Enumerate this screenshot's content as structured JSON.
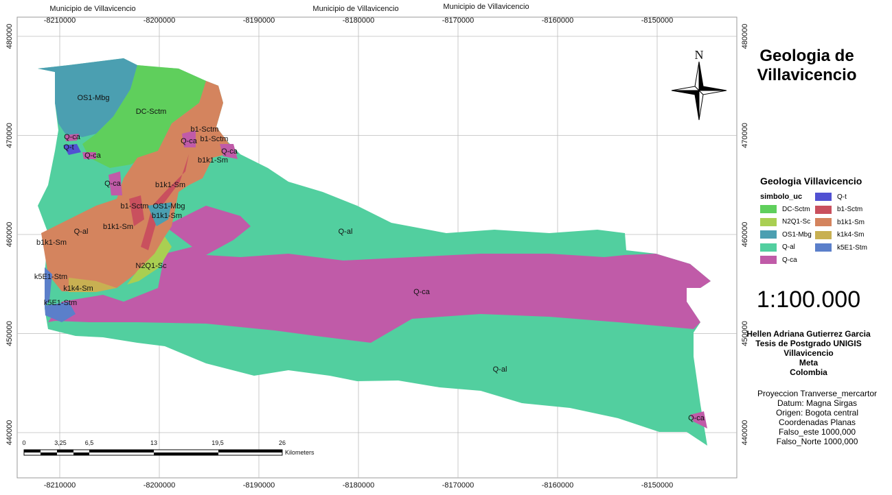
{
  "map": {
    "municipality_labels": [
      "Municipio de Villavicencio",
      "Municipio de Villavicencio",
      "Municipio de Villavicencio"
    ],
    "x_ticks": [
      -8210000,
      -8200000,
      -8190000,
      -8180000,
      -8170000,
      -8160000,
      -8150000
    ],
    "y_ticks": [
      480000,
      470000,
      460000,
      450000,
      440000
    ],
    "unit_labels": [
      "OS1-Mbg",
      "DC-Sctm",
      "Q-ca",
      "Q-t",
      "Q-ca",
      "b1-Sctm",
      "Q-ca",
      "b1-Sctm",
      "Q-ca",
      "b1k1-Sm",
      "Q-ca",
      "b1k1-Sm",
      "b1-Sctm",
      "OS1-Mbg",
      "b1k1-Sm",
      "b1k1-Sm",
      "Q-al",
      "Q-al",
      "b1k1-Sm",
      "N2Q1-Sc",
      "k5E1-Stm",
      "k1k4-Sm",
      "k5E1-Stm",
      "Q-ca",
      "Q-al",
      "Q-ca"
    ],
    "scalebar": {
      "ticks": [
        "0",
        "3,25",
        "6,5",
        "13",
        "19,5",
        "26"
      ],
      "unit": "Kilometers"
    }
  },
  "north": "N",
  "title": "Geologia de Villavicencio",
  "legend": {
    "title": "Geologia Villavicencio",
    "field": "simbolo_uc",
    "items": [
      {
        "label": "DC-Sctm",
        "color": "#5fcf5c"
      },
      {
        "label": "N2Q1-Sc",
        "color": "#a9cf52"
      },
      {
        "label": "OS1-Mbg",
        "color": "#4b9fb1"
      },
      {
        "label": "Q-al",
        "color": "#52cf9f"
      },
      {
        "label": "Q-ca",
        "color": "#c05ba8"
      },
      {
        "label": "Q-t",
        "color": "#5151d2"
      },
      {
        "label": "b1-Sctm",
        "color": "#c9505e"
      },
      {
        "label": "b1k1-Sm",
        "color": "#d4845e"
      },
      {
        "label": "k1k4-Sm",
        "color": "#c8b052"
      },
      {
        "label": "k5E1-Stm",
        "color": "#5b7fca"
      }
    ]
  },
  "scale": "1:100.000",
  "author": [
    "Hellen Adriana Gutierrez Garcia",
    "Tesis de Postgrado UNIGIS",
    "Villavicencio",
    "Meta",
    "Colombia"
  ],
  "projection": [
    "Proyeccion Tranverse_mercartor",
    "Datum: Magna Sirgas",
    "Origen: Bogota central",
    "Coordenadas Planas",
    "Falso_este 1000,000",
    "Falso_Norte 1000,000"
  ]
}
